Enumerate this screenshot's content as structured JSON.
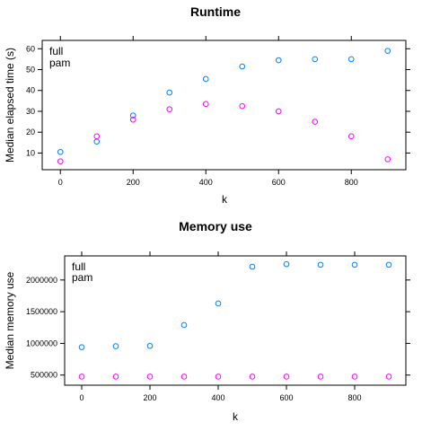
{
  "colors": {
    "full": "#0080ff",
    "pam": "#ff00ff"
  },
  "chart_data": [
    {
      "type": "scatter",
      "title": "Runtime",
      "xlabel": "k",
      "ylabel": "Median elapsed time (s)",
      "xlim": [
        -50,
        950
      ],
      "ylim": [
        2,
        64
      ],
      "xticks": [
        0,
        200,
        400,
        600,
        800
      ],
      "yticks": [
        10,
        20,
        30,
        40,
        50,
        60
      ],
      "xtick_labels": [
        "0",
        "200",
        "400",
        "600",
        "800"
      ],
      "ytick_labels": [
        "10",
        "20",
        "30",
        "40",
        "50",
        "60"
      ],
      "legend_position": "top-left",
      "series": [
        {
          "name": "full",
          "x": [
            0,
            100,
            200,
            300,
            400,
            500,
            600,
            700,
            800,
            900
          ],
          "y": [
            10.5,
            15.5,
            28,
            39,
            45.5,
            51.5,
            54.5,
            55,
            55,
            59
          ]
        },
        {
          "name": "pam",
          "x": [
            0,
            100,
            200,
            300,
            400,
            500,
            600,
            700,
            800,
            900
          ],
          "y": [
            6,
            18,
            26,
            31,
            33.5,
            32.5,
            30,
            25,
            18,
            7
          ]
        }
      ]
    },
    {
      "type": "scatter",
      "title": "Memory use",
      "xlabel": "k",
      "ylabel": "Median memory use",
      "xlim": [
        -50,
        950
      ],
      "ylim": [
        340000,
        2380000
      ],
      "xticks": [
        0,
        200,
        400,
        600,
        800
      ],
      "yticks": [
        500000,
        1000000,
        1500000,
        2000000
      ],
      "xtick_labels": [
        "0",
        "200",
        "400",
        "600",
        "800"
      ],
      "ytick_labels": [
        "500000",
        "1000000",
        "1500000",
        "2000000"
      ],
      "legend_position": "top-left",
      "series": [
        {
          "name": "full",
          "x": [
            0,
            100,
            200,
            300,
            400,
            500,
            600,
            700,
            800,
            900
          ],
          "y": [
            940000,
            955000,
            960000,
            1290000,
            1630000,
            2210000,
            2250000,
            2240000,
            2240000,
            2240000
          ]
        },
        {
          "name": "pam",
          "x": [
            0,
            100,
            200,
            300,
            400,
            500,
            600,
            700,
            800,
            900
          ],
          "y": [
            475000,
            475000,
            475000,
            475000,
            475000,
            475000,
            475000,
            475000,
            475000,
            475000
          ]
        }
      ]
    }
  ]
}
